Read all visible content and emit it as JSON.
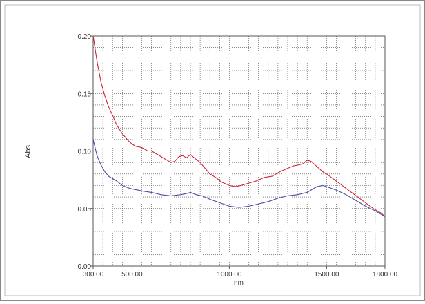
{
  "chart_data": {
    "type": "line",
    "xlabel": "nm",
    "ylabel": "Abs.",
    "xlim": [
      300,
      1800
    ],
    "ylim": [
      0,
      0.2
    ],
    "x_ticks": [
      300,
      500,
      1000,
      1500,
      1800
    ],
    "x_tick_labels": [
      "300.00",
      "500.00",
      "1000.00",
      "1500.00",
      "1800.00"
    ],
    "y_ticks": [
      0,
      0.05,
      0.1,
      0.15,
      0.2
    ],
    "y_tick_labels": [
      "0.00",
      "0.05",
      "0.10",
      "0.15",
      "0.20"
    ],
    "grid": true,
    "series": [
      {
        "color": "#cc2233",
        "x": [
          300,
          320,
          340,
          360,
          380,
          400,
          420,
          450,
          480,
          500,
          520,
          550,
          580,
          600,
          630,
          660,
          700,
          720,
          740,
          760,
          780,
          800,
          820,
          850,
          880,
          900,
          930,
          960,
          1000,
          1030,
          1060,
          1100,
          1140,
          1180,
          1220,
          1260,
          1300,
          1330,
          1360,
          1380,
          1400,
          1420,
          1440,
          1460,
          1480,
          1500,
          1540,
          1580,
          1620,
          1660,
          1700,
          1740,
          1780,
          1800
        ],
        "values": [
          0.2,
          0.178,
          0.16,
          0.148,
          0.138,
          0.131,
          0.123,
          0.115,
          0.109,
          0.106,
          0.104,
          0.103,
          0.1,
          0.1,
          0.097,
          0.094,
          0.09,
          0.091,
          0.095,
          0.096,
          0.094,
          0.097,
          0.094,
          0.09,
          0.084,
          0.08,
          0.077,
          0.073,
          0.07,
          0.069,
          0.07,
          0.072,
          0.074,
          0.077,
          0.078,
          0.082,
          0.085,
          0.087,
          0.088,
          0.089,
          0.092,
          0.091,
          0.088,
          0.085,
          0.082,
          0.08,
          0.075,
          0.07,
          0.065,
          0.06,
          0.055,
          0.05,
          0.046,
          0.043
        ]
      },
      {
        "color": "#4a4aa8",
        "x": [
          300,
          320,
          340,
          360,
          380,
          400,
          420,
          450,
          480,
          500,
          530,
          560,
          600,
          650,
          700,
          750,
          780,
          800,
          830,
          860,
          900,
          950,
          1000,
          1050,
          1100,
          1150,
          1200,
          1250,
          1300,
          1350,
          1400,
          1450,
          1480,
          1500,
          1550,
          1600,
          1650,
          1700,
          1750,
          1800
        ],
        "values": [
          0.11,
          0.096,
          0.088,
          0.082,
          0.078,
          0.076,
          0.074,
          0.07,
          0.068,
          0.067,
          0.066,
          0.065,
          0.064,
          0.062,
          0.061,
          0.062,
          0.063,
          0.064,
          0.062,
          0.061,
          0.058,
          0.055,
          0.052,
          0.051,
          0.052,
          0.054,
          0.056,
          0.059,
          0.061,
          0.062,
          0.064,
          0.069,
          0.07,
          0.069,
          0.066,
          0.062,
          0.057,
          0.052,
          0.048,
          0.043
        ]
      }
    ]
  }
}
